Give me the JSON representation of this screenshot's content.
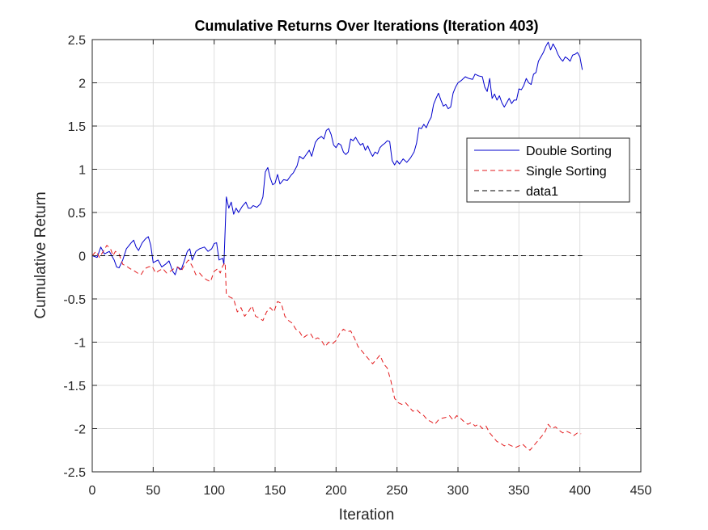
{
  "chart_data": {
    "type": "line",
    "title": "Cumulative Returns Over Iterations (Iteration 403)",
    "xlabel": "Iteration",
    "ylabel": "Cumulative Return",
    "xlim": [
      0,
      450
    ],
    "ylim": [
      -2.5,
      2.5
    ],
    "xticks": [
      0,
      50,
      100,
      150,
      200,
      250,
      300,
      350,
      400,
      450
    ],
    "xtick_labels": [
      "0",
      "50",
      "100",
      "150",
      "200",
      "250",
      "300",
      "350",
      "400",
      "450"
    ],
    "yticks": [
      -2.5,
      -2,
      -1.5,
      -1,
      -0.5,
      0,
      0.5,
      1,
      1.5,
      2,
      2.5
    ],
    "ytick_labels": [
      "-2.5",
      "-2",
      "-1.5",
      "-1",
      "-0.5",
      "0",
      "0.5",
      "1",
      "1.5",
      "2",
      "2.5"
    ],
    "grid": true,
    "legend_position": "top-right",
    "series": [
      {
        "name": "Double Sorting",
        "color": "#0000cd",
        "style": "solid",
        "points": [
          [
            0,
            0
          ],
          [
            4,
            -0.02
          ],
          [
            7,
            0.1
          ],
          [
            10,
            0.02
          ],
          [
            14,
            0.05
          ],
          [
            18,
            -0.05
          ],
          [
            20,
            -0.13
          ],
          [
            22,
            -0.14
          ],
          [
            25,
            -0.05
          ],
          [
            28,
            0.08
          ],
          [
            32,
            0.15
          ],
          [
            34,
            0.18
          ],
          [
            36,
            0.1
          ],
          [
            38,
            0.06
          ],
          [
            41,
            0.15
          ],
          [
            44,
            0.2
          ],
          [
            46,
            0.22
          ],
          [
            48,
            0.12
          ],
          [
            50,
            -0.08
          ],
          [
            54,
            -0.05
          ],
          [
            57,
            -0.13
          ],
          [
            60,
            -0.1
          ],
          [
            63,
            -0.06
          ],
          [
            66,
            -0.18
          ],
          [
            68,
            -0.22
          ],
          [
            70,
            -0.13
          ],
          [
            73,
            -0.16
          ],
          [
            75,
            -0.08
          ],
          [
            78,
            0.05
          ],
          [
            80,
            0.08
          ],
          [
            82,
            -0.05
          ],
          [
            85,
            0.05
          ],
          [
            88,
            0.08
          ],
          [
            92,
            0.1
          ],
          [
            95,
            0.05
          ],
          [
            98,
            0.08
          ],
          [
            100,
            0.14
          ],
          [
            102,
            0.15
          ],
          [
            104,
            -0.05
          ],
          [
            107,
            -0.03
          ],
          [
            108,
            -0.1
          ],
          [
            110,
            0.68
          ],
          [
            112,
            0.55
          ],
          [
            114,
            0.62
          ],
          [
            116,
            0.48
          ],
          [
            118,
            0.55
          ],
          [
            120,
            0.5
          ],
          [
            123,
            0.57
          ],
          [
            126,
            0.62
          ],
          [
            128,
            0.55
          ],
          [
            130,
            0.55
          ],
          [
            132,
            0.58
          ],
          [
            135,
            0.56
          ],
          [
            138,
            0.6
          ],
          [
            140,
            0.68
          ],
          [
            142,
            0.97
          ],
          [
            144,
            1.02
          ],
          [
            146,
            0.9
          ],
          [
            148,
            0.82
          ],
          [
            150,
            0.84
          ],
          [
            152,
            0.94
          ],
          [
            154,
            0.83
          ],
          [
            157,
            0.88
          ],
          [
            160,
            0.87
          ],
          [
            163,
            0.93
          ],
          [
            165,
            0.96
          ],
          [
            168,
            1.04
          ],
          [
            170,
            1.15
          ],
          [
            173,
            1.12
          ],
          [
            176,
            1.18
          ],
          [
            178,
            1.22
          ],
          [
            180,
            1.15
          ],
          [
            183,
            1.31
          ],
          [
            185,
            1.35
          ],
          [
            188,
            1.38
          ],
          [
            190,
            1.35
          ],
          [
            192,
            1.45
          ],
          [
            194,
            1.47
          ],
          [
            196,
            1.4
          ],
          [
            198,
            1.28
          ],
          [
            200,
            1.25
          ],
          [
            202,
            1.3
          ],
          [
            204,
            1.28
          ],
          [
            206,
            1.2
          ],
          [
            208,
            1.17
          ],
          [
            210,
            1.2
          ],
          [
            212,
            1.35
          ],
          [
            214,
            1.33
          ],
          [
            216,
            1.37
          ],
          [
            218,
            1.32
          ],
          [
            220,
            1.28
          ],
          [
            222,
            1.3
          ],
          [
            224,
            1.22
          ],
          [
            226,
            1.27
          ],
          [
            228,
            1.2
          ],
          [
            230,
            1.15
          ],
          [
            232,
            1.2
          ],
          [
            234,
            1.18
          ],
          [
            236,
            1.25
          ],
          [
            238,
            1.28
          ],
          [
            240,
            1.3
          ],
          [
            242,
            1.33
          ],
          [
            244,
            1.32
          ],
          [
            246,
            1.1
          ],
          [
            248,
            1.05
          ],
          [
            250,
            1.1
          ],
          [
            252,
            1.06
          ],
          [
            255,
            1.12
          ],
          [
            258,
            1.08
          ],
          [
            261,
            1.13
          ],
          [
            264,
            1.2
          ],
          [
            266,
            1.3
          ],
          [
            268,
            1.48
          ],
          [
            270,
            1.47
          ],
          [
            272,
            1.52
          ],
          [
            274,
            1.48
          ],
          [
            276,
            1.55
          ],
          [
            278,
            1.6
          ],
          [
            280,
            1.75
          ],
          [
            282,
            1.82
          ],
          [
            284,
            1.88
          ],
          [
            286,
            1.8
          ],
          [
            288,
            1.73
          ],
          [
            290,
            1.75
          ],
          [
            292,
            1.7
          ],
          [
            294,
            1.72
          ],
          [
            296,
            1.88
          ],
          [
            298,
            1.95
          ],
          [
            300,
            2.0
          ],
          [
            303,
            2.03
          ],
          [
            306,
            2.07
          ],
          [
            309,
            2.05
          ],
          [
            312,
            2.04
          ],
          [
            314,
            2.1
          ],
          [
            317,
            2.08
          ],
          [
            320,
            2.07
          ],
          [
            322,
            1.95
          ],
          [
            324,
            1.9
          ],
          [
            326,
            2.05
          ],
          [
            328,
            1.82
          ],
          [
            330,
            1.87
          ],
          [
            332,
            1.8
          ],
          [
            334,
            1.85
          ],
          [
            336,
            1.77
          ],
          [
            338,
            1.72
          ],
          [
            340,
            1.77
          ],
          [
            342,
            1.82
          ],
          [
            344,
            1.76
          ],
          [
            346,
            1.8
          ],
          [
            348,
            1.8
          ],
          [
            350,
            1.93
          ],
          [
            352,
            1.92
          ],
          [
            354,
            1.97
          ],
          [
            356,
            2.05
          ],
          [
            358,
            2.0
          ],
          [
            360,
            1.98
          ],
          [
            362,
            2.1
          ],
          [
            364,
            2.12
          ],
          [
            366,
            2.25
          ],
          [
            368,
            2.3
          ],
          [
            370,
            2.35
          ],
          [
            372,
            2.42
          ],
          [
            374,
            2.47
          ],
          [
            376,
            2.38
          ],
          [
            378,
            2.45
          ],
          [
            380,
            2.4
          ],
          [
            382,
            2.33
          ],
          [
            384,
            2.28
          ],
          [
            386,
            2.25
          ],
          [
            388,
            2.3
          ],
          [
            390,
            2.28
          ],
          [
            392,
            2.25
          ],
          [
            394,
            2.32
          ],
          [
            396,
            2.33
          ],
          [
            398,
            2.35
          ],
          [
            400,
            2.3
          ],
          [
            402,
            2.15
          ]
        ]
      },
      {
        "name": "Single Sorting",
        "color": "#e31a1c",
        "style": "dashed",
        "points": [
          [
            0,
            0
          ],
          [
            3,
            0.05
          ],
          [
            6,
            -0.02
          ],
          [
            9,
            0.05
          ],
          [
            12,
            0.12
          ],
          [
            15,
            0.08
          ],
          [
            17,
            0.0
          ],
          [
            19,
            0.05
          ],
          [
            22,
            0.02
          ],
          [
            25,
            -0.1
          ],
          [
            28,
            -0.12
          ],
          [
            31,
            -0.15
          ],
          [
            34,
            -0.17
          ],
          [
            37,
            -0.2
          ],
          [
            40,
            -0.22
          ],
          [
            43,
            -0.15
          ],
          [
            46,
            -0.13
          ],
          [
            49,
            -0.12
          ],
          [
            52,
            -0.2
          ],
          [
            55,
            -0.17
          ],
          [
            58,
            -0.15
          ],
          [
            61,
            -0.2
          ],
          [
            64,
            -0.18
          ],
          [
            67,
            -0.15
          ],
          [
            70,
            -0.13
          ],
          [
            73,
            -0.18
          ],
          [
            76,
            -0.1
          ],
          [
            79,
            -0.05
          ],
          [
            82,
            -0.12
          ],
          [
            85,
            -0.22
          ],
          [
            88,
            -0.2
          ],
          [
            91,
            -0.25
          ],
          [
            94,
            -0.28
          ],
          [
            97,
            -0.3
          ],
          [
            100,
            -0.18
          ],
          [
            103,
            -0.15
          ],
          [
            105,
            -0.2
          ],
          [
            107,
            -0.12
          ],
          [
            109,
            -0.08
          ],
          [
            110,
            -0.45
          ],
          [
            113,
            -0.48
          ],
          [
            116,
            -0.5
          ],
          [
            119,
            -0.65
          ],
          [
            122,
            -0.6
          ],
          [
            125,
            -0.7
          ],
          [
            128,
            -0.65
          ],
          [
            131,
            -0.58
          ],
          [
            134,
            -0.7
          ],
          [
            137,
            -0.72
          ],
          [
            140,
            -0.75
          ],
          [
            143,
            -0.65
          ],
          [
            146,
            -0.6
          ],
          [
            149,
            -0.65
          ],
          [
            152,
            -0.53
          ],
          [
            155,
            -0.55
          ],
          [
            158,
            -0.7
          ],
          [
            161,
            -0.75
          ],
          [
            164,
            -0.78
          ],
          [
            167,
            -0.85
          ],
          [
            170,
            -0.88
          ],
          [
            173,
            -0.95
          ],
          [
            176,
            -0.92
          ],
          [
            179,
            -0.9
          ],
          [
            182,
            -0.97
          ],
          [
            185,
            -0.95
          ],
          [
            188,
            -0.98
          ],
          [
            191,
            -1.05
          ],
          [
            194,
            -1.0
          ],
          [
            197,
            -1.02
          ],
          [
            200,
            -0.98
          ],
          [
            203,
            -0.9
          ],
          [
            206,
            -0.85
          ],
          [
            209,
            -0.88
          ],
          [
            212,
            -0.87
          ],
          [
            215,
            -0.95
          ],
          [
            218,
            -1.05
          ],
          [
            221,
            -1.1
          ],
          [
            224,
            -1.15
          ],
          [
            227,
            -1.2
          ],
          [
            230,
            -1.25
          ],
          [
            233,
            -1.2
          ],
          [
            236,
            -1.15
          ],
          [
            239,
            -1.25
          ],
          [
            242,
            -1.3
          ],
          [
            245,
            -1.45
          ],
          [
            248,
            -1.65
          ],
          [
            251,
            -1.7
          ],
          [
            254,
            -1.72
          ],
          [
            257,
            -1.7
          ],
          [
            260,
            -1.75
          ],
          [
            263,
            -1.8
          ],
          [
            266,
            -1.78
          ],
          [
            269,
            -1.82
          ],
          [
            272,
            -1.85
          ],
          [
            275,
            -1.9
          ],
          [
            278,
            -1.92
          ],
          [
            281,
            -1.95
          ],
          [
            284,
            -1.9
          ],
          [
            287,
            -1.88
          ],
          [
            290,
            -1.87
          ],
          [
            293,
            -1.85
          ],
          [
            296,
            -1.9
          ],
          [
            299,
            -1.85
          ],
          [
            302,
            -1.88
          ],
          [
            305,
            -1.92
          ],
          [
            308,
            -1.95
          ],
          [
            311,
            -1.93
          ],
          [
            314,
            -1.97
          ],
          [
            317,
            -1.95
          ],
          [
            320,
            -2.0
          ],
          [
            323,
            -1.97
          ],
          [
            326,
            -2.05
          ],
          [
            329,
            -2.1
          ],
          [
            332,
            -2.15
          ],
          [
            335,
            -2.17
          ],
          [
            338,
            -2.2
          ],
          [
            341,
            -2.18
          ],
          [
            344,
            -2.2
          ],
          [
            347,
            -2.22
          ],
          [
            350,
            -2.2
          ],
          [
            353,
            -2.18
          ],
          [
            356,
            -2.22
          ],
          [
            359,
            -2.25
          ],
          [
            362,
            -2.2
          ],
          [
            365,
            -2.15
          ],
          [
            368,
            -2.1
          ],
          [
            371,
            -2.05
          ],
          [
            374,
            -1.95
          ],
          [
            377,
            -2.0
          ],
          [
            380,
            -1.98
          ],
          [
            383,
            -2.02
          ],
          [
            386,
            -2.05
          ],
          [
            389,
            -2.03
          ],
          [
            392,
            -2.05
          ],
          [
            395,
            -2.08
          ],
          [
            398,
            -2.05
          ],
          [
            401,
            -2.06
          ]
        ]
      },
      {
        "name": "data1",
        "color": "#000000",
        "style": "dashed",
        "points": [
          [
            0,
            0
          ],
          [
            402,
            0
          ]
        ]
      }
    ]
  }
}
